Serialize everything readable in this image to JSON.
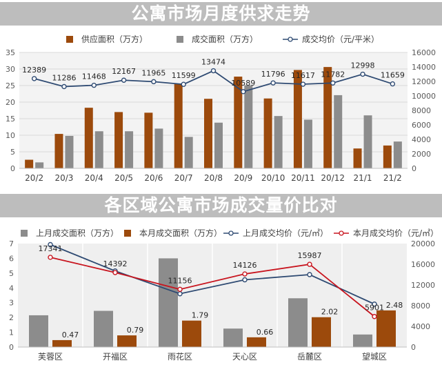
{
  "chart_data": [
    {
      "type": "bar",
      "title": "公寓市场月度供求走势",
      "categories": [
        "20/2",
        "20/3",
        "20/4",
        "20/5",
        "20/6",
        "20/7",
        "20/8",
        "20/9",
        "20/10",
        "20/11",
        "20/12",
        "21/1",
        "21/2"
      ],
      "series": [
        {
          "name": "供应面积（万方）",
          "type": "bar",
          "axis": "left",
          "color": "#9c4a0c",
          "values": [
            2.6,
            10.4,
            18.3,
            17.0,
            16.8,
            25.5,
            21.0,
            27.7,
            21.1,
            29.7,
            30.6,
            6.0,
            6.9
          ]
        },
        {
          "name": "成交面积（万方）",
          "type": "bar",
          "axis": "left",
          "color": "#8c8c8c",
          "values": [
            1.8,
            9.8,
            11.2,
            11.2,
            12.0,
            9.5,
            13.8,
            25.1,
            15.8,
            14.7,
            22.1,
            16.0,
            8.1
          ]
        },
        {
          "name": "成交均价（元/平米）",
          "type": "line",
          "axis": "right",
          "color": "#2e4a72",
          "values": [
            12389,
            11286,
            11468,
            12167,
            11965,
            11599,
            13474,
            10589,
            11796,
            11617,
            11782,
            12998,
            11659
          ],
          "labels": [
            "12389",
            "11286",
            "11468",
            "12167",
            "11965",
            "11599",
            "13474",
            "10589",
            "11796",
            "11617",
            "11782",
            "12998",
            "11659"
          ]
        }
      ],
      "left_ticks": [
        "0",
        "5",
        "10",
        "15",
        "20",
        "25",
        "30",
        "35"
      ],
      "right_ticks": [
        "0",
        "2000",
        "4000",
        "6000",
        "8000",
        "10000",
        "12000",
        "14000",
        "16000"
      ],
      "ylim_left": [
        0,
        35
      ],
      "ylim_right": [
        0,
        16000
      ],
      "grid": true,
      "legend": "top"
    },
    {
      "type": "bar",
      "title": "各区域公寓市场成交量价比对",
      "categories": [
        "芙蓉区",
        "开福区",
        "雨花区",
        "天心区",
        "岳麓区",
        "望城区"
      ],
      "series": [
        {
          "name": "上月成交面积（万方）",
          "type": "bar",
          "axis": "left",
          "color": "#8c8c8c",
          "values": [
            2.15,
            2.45,
            6.0,
            1.25,
            3.3,
            0.85
          ]
        },
        {
          "name": "本月成交面积（万方）",
          "type": "bar",
          "axis": "left",
          "color": "#9c4a0c",
          "values": [
            0.47,
            0.79,
            1.79,
            0.66,
            2.02,
            2.48
          ],
          "labels": [
            "0.47",
            "0.79",
            "1.79",
            "0.66",
            "2.02",
            "2.48"
          ]
        },
        {
          "name": "上月成交均价（元/㎡）",
          "type": "line",
          "axis": "right",
          "color": "#2e4a72",
          "values": [
            19800,
            14700,
            10300,
            13000,
            14000,
            8300
          ]
        },
        {
          "name": "本月成交均价（元/㎡）",
          "type": "line",
          "axis": "right",
          "color": "#c8141e",
          "values": [
            17341,
            14392,
            11156,
            14126,
            15987,
            5901
          ],
          "labels": [
            "17341",
            "14392",
            "11156",
            "14126",
            "15987",
            "5901"
          ]
        }
      ],
      "left_ticks": [
        "0",
        "1",
        "2",
        "3",
        "4",
        "5",
        "6",
        "7"
      ],
      "right_ticks": [
        "0",
        "4000",
        "8000",
        "12000",
        "16000",
        "20000"
      ],
      "ylim_left": [
        0,
        7
      ],
      "ylim_right": [
        0,
        20000
      ],
      "grid": false,
      "legend": "top"
    }
  ]
}
